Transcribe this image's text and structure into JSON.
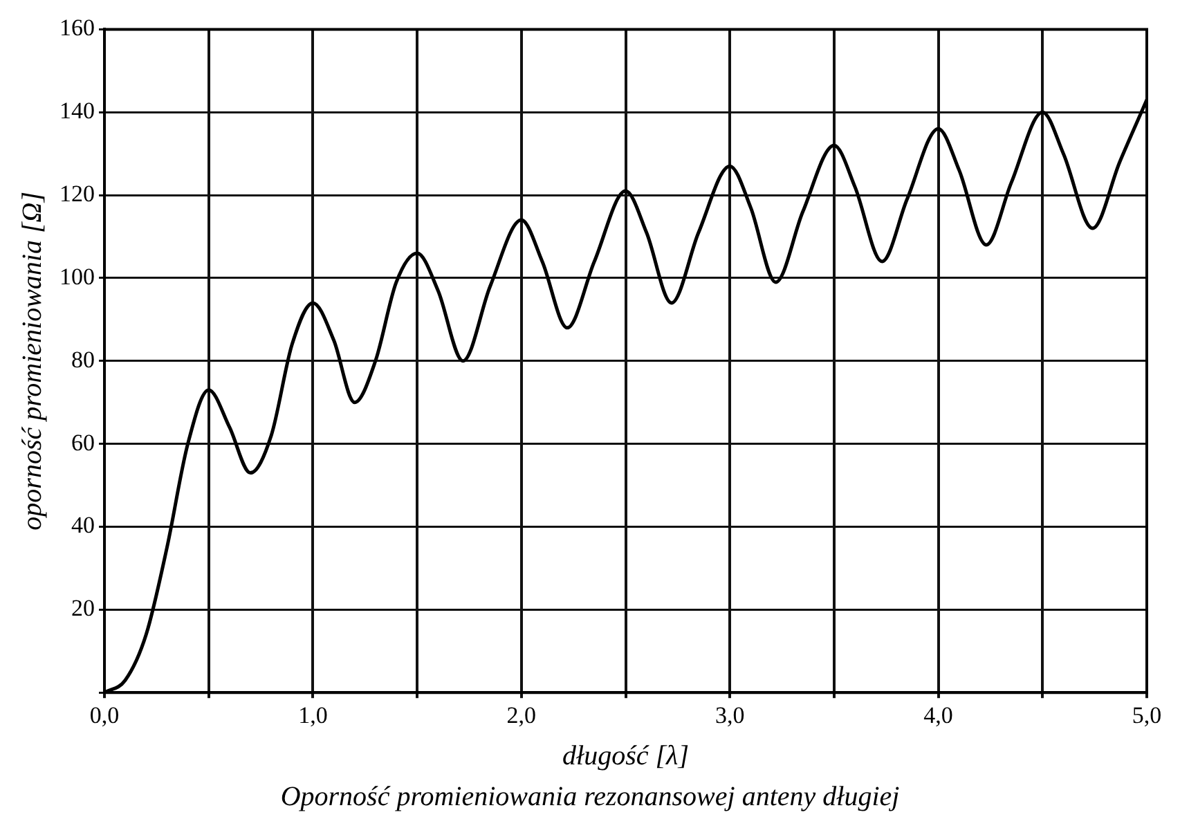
{
  "chart_data": {
    "type": "line",
    "xlabel": "długość [λ]",
    "ylabel": "oporność promieniowania [Ω]",
    "annotations": [
      "Oporność promieniowania rezonansowej anteny długiej"
    ],
    "x": [
      0,
      0.1,
      0.2,
      0.3,
      0.4,
      0.5,
      0.6,
      0.7,
      0.8,
      0.9,
      1.0,
      1.1,
      1.2,
      1.3,
      1.4,
      1.5,
      1.6,
      1.72,
      1.85,
      2.0,
      2.1,
      2.22,
      2.35,
      2.5,
      2.6,
      2.72,
      2.85,
      3.0,
      3.1,
      3.22,
      3.35,
      3.5,
      3.6,
      3.73,
      3.85,
      4.0,
      4.1,
      4.23,
      4.35,
      4.5,
      4.6,
      4.74,
      4.87,
      5.0
    ],
    "series": [
      {
        "color": "#000000",
        "values": [
          0,
          3,
          14,
          35,
          60,
          73,
          64,
          53,
          62,
          84,
          94,
          85,
          70,
          80,
          99,
          106,
          97,
          80,
          98,
          114,
          104,
          88,
          104,
          121,
          111,
          94,
          111,
          127,
          117,
          99,
          116,
          132,
          122,
          104,
          119,
          136,
          126,
          108,
          123,
          140,
          130,
          112,
          128,
          143
        ]
      }
    ],
    "xlim": [
      0,
      5
    ],
    "xticks": [
      {
        "value": 0,
        "label": "0,0"
      },
      {
        "value": 0.5,
        "label": null
      },
      {
        "value": 1,
        "label": "1,0"
      },
      {
        "value": 1.5,
        "label": null
      },
      {
        "value": 2,
        "label": "2,0"
      },
      {
        "value": 2.5,
        "label": null
      },
      {
        "value": 3,
        "label": "3,0"
      },
      {
        "value": 3.5,
        "label": null
      },
      {
        "value": 4,
        "label": "4,0"
      },
      {
        "value": 4.5,
        "label": null
      },
      {
        "value": 5,
        "label": "5,0"
      }
    ],
    "ylim": [
      0,
      160
    ],
    "yticks": [
      {
        "value": 0,
        "label": null
      },
      20,
      40,
      60,
      80,
      100,
      120,
      140,
      160
    ],
    "grid": true,
    "legend": false,
    "marker": "none",
    "line_style": "solid"
  }
}
